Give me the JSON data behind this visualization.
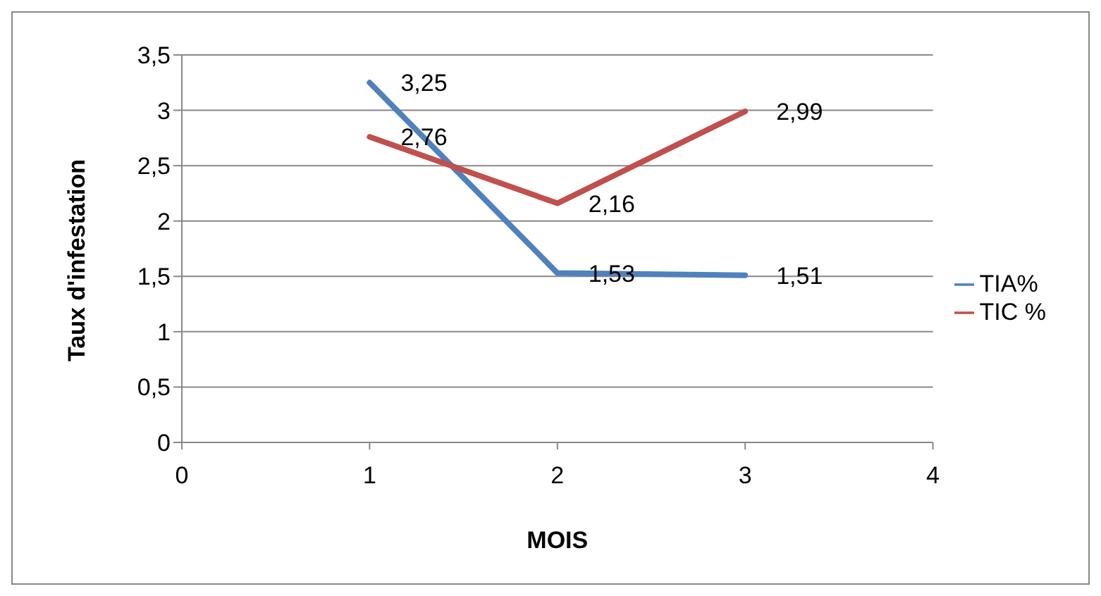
{
  "chart_data": {
    "type": "line",
    "xlabel": "MOIS",
    "ylabel": "Taux d'infestation",
    "x": [
      1,
      2,
      3
    ],
    "series": [
      {
        "name": "TIA%",
        "color": "#4f81bd",
        "values": [
          3.25,
          1.53,
          1.51
        ],
        "value_labels": [
          "3,25",
          "1,53",
          "1,51"
        ]
      },
      {
        "name": "TIC %",
        "color": "#c0504d",
        "values": [
          2.76,
          2.16,
          2.99
        ],
        "value_labels": [
          "2,76",
          "2,16",
          "2,99"
        ]
      }
    ],
    "xlim": [
      0,
      4
    ],
    "xticks": [
      0,
      1,
      2,
      3,
      4
    ],
    "ylim": [
      0,
      3.5
    ],
    "yticks": [
      0,
      {
        "value": 0.5,
        "label": "0,5"
      },
      1,
      {
        "value": 1.5,
        "label": "1,5"
      },
      2,
      {
        "value": 2.5,
        "label": "2,5"
      },
      3,
      {
        "value": 3.5,
        "label": "3,5"
      }
    ],
    "grid": "y",
    "legend": "right",
    "marker": "none",
    "line_style": "solid"
  }
}
